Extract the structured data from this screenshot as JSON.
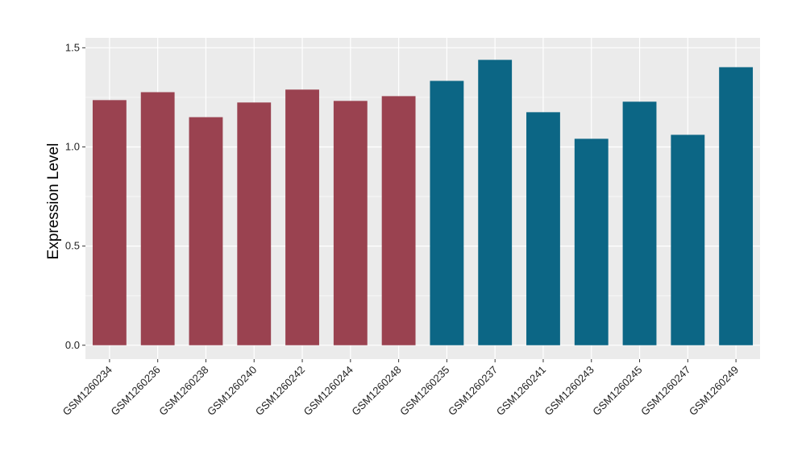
{
  "chart_data": {
    "type": "bar",
    "title": "",
    "xlabel": "",
    "ylabel": "Expression Level",
    "ylim": [
      -0.07,
      1.55
    ],
    "yticks": [
      0.0,
      0.5,
      1.0,
      1.5
    ],
    "ytick_labels": [
      "0.0",
      "0.5",
      "1.0",
      "1.5"
    ],
    "grid": true,
    "categories": [
      "GSM1260234",
      "GSM1260236",
      "GSM1260238",
      "GSM1260240",
      "GSM1260242",
      "GSM1260244",
      "GSM1260248",
      "GSM1260235",
      "GSM1260237",
      "GSM1260241",
      "GSM1260243",
      "GSM1260245",
      "GSM1260247",
      "GSM1260249"
    ],
    "values": [
      1.236,
      1.276,
      1.15,
      1.224,
      1.289,
      1.232,
      1.256,
      1.333,
      1.439,
      1.175,
      1.041,
      1.228,
      1.061,
      1.402
    ],
    "groups": [
      0,
      0,
      0,
      0,
      0,
      0,
      0,
      1,
      1,
      1,
      1,
      1,
      1,
      1
    ],
    "group_colors": [
      "#9a4250",
      "#0c6685"
    ],
    "panel_color": "#ebebeb"
  }
}
